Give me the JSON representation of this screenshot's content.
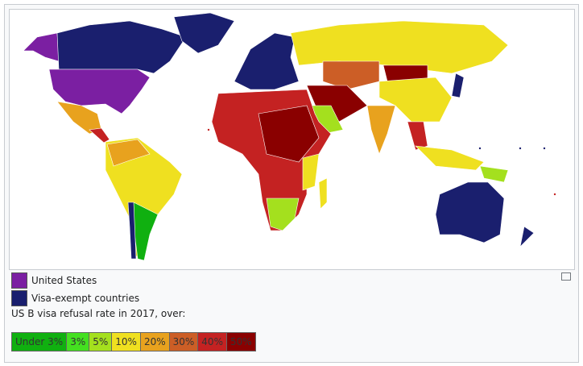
{
  "legend": {
    "items": [
      {
        "label": "United States",
        "color": "#7b1fa2"
      },
      {
        "label": "Visa-exempt countries",
        "color": "#1a1f6e"
      }
    ],
    "caption": "US B visa refusal rate in 2017, over:",
    "scale": [
      {
        "label": "Under 3%",
        "color": "#10b010"
      },
      {
        "label": "3%",
        "color": "#44e020"
      },
      {
        "label": "5%",
        "color": "#a4e01e"
      },
      {
        "label": "10%",
        "color": "#efe020"
      },
      {
        "label": "20%",
        "color": "#e8a21e"
      },
      {
        "label": "30%",
        "color": "#cc5e26"
      },
      {
        "label": "40%",
        "color": "#c42222"
      },
      {
        "label": "50%",
        "color": "#8a0000"
      }
    ]
  }
}
